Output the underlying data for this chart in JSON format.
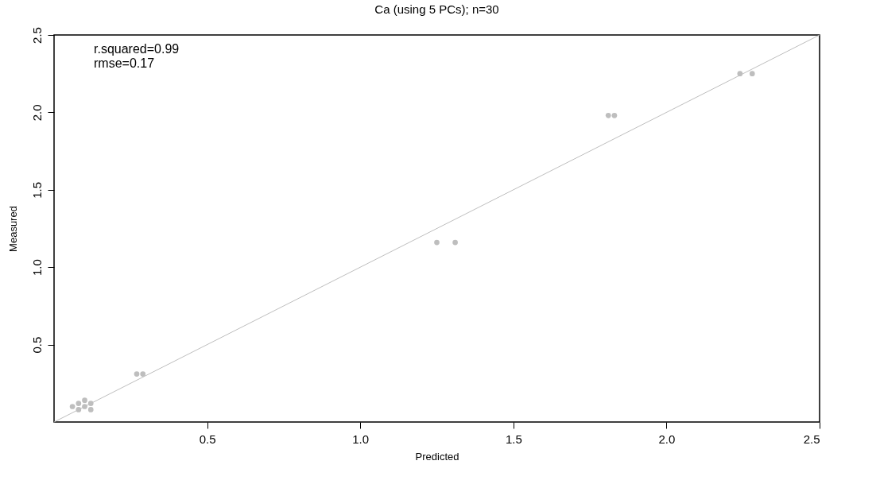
{
  "chart_data": {
    "type": "scatter",
    "title": "Ca (using 5 PCs); n=30",
    "xlabel": "Predicted",
    "ylabel": "Measured",
    "xlim": [
      0,
      2.5
    ],
    "ylim": [
      0,
      2.5
    ],
    "xticks": [
      0.5,
      {
        "value": 1,
        "label": "1.0"
      },
      1.5,
      {
        "value": 2,
        "label": "2.0"
      },
      2.5
    ],
    "yticks": [
      0.5,
      {
        "value": 1,
        "label": "1.0"
      },
      1.5,
      {
        "value": 2,
        "label": "2.0"
      },
      2.5
    ],
    "marker": "circle",
    "annotations": [
      "r.squared=0.99",
      "rmse=0.17"
    ],
    "series": [
      {
        "color": "#bebebe",
        "x": [
          0.06,
          0.08,
          0.08,
          0.1,
          0.1,
          0.12,
          0.12,
          0.27,
          0.29,
          1.25,
          1.31,
          1.81,
          1.83,
          2.24,
          2.28
        ],
        "values": [
          0.1,
          0.08,
          0.12,
          0.1,
          0.14,
          0.12,
          0.08,
          0.31,
          0.31,
          1.16,
          1.16,
          1.98,
          1.98,
          2.25,
          2.25
        ]
      },
      {
        "type": "line",
        "marker": "none",
        "color": "#bebebe",
        "x": [
          0,
          2.5
        ],
        "values": [
          0,
          2.5
        ]
      }
    ]
  }
}
